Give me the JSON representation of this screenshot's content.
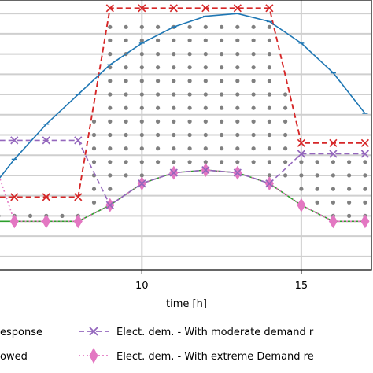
{
  "chart_data": {
    "type": "line",
    "xlabel": "time [h]",
    "ylabel": "",
    "xlim": [
      5.5,
      17.2
    ],
    "ylim": [
      0,
      1
    ],
    "x_ticks": [
      10,
      15
    ],
    "grid": true,
    "legend_placement": "bottom",
    "colors": {
      "blue": "#1f77b4",
      "red": "#d62728",
      "purple": "#9467bd",
      "green": "#2ca02c",
      "pink": "#e377c2",
      "dots": "#808080",
      "grid": "#cfcfcf"
    },
    "series": [
      {
        "key": "blue",
        "x": [
          5,
          6,
          7,
          8,
          9,
          10,
          11,
          12,
          13,
          14,
          15,
          16,
          17
        ],
        "values": [
          0.26,
          0.41,
          0.54,
          0.65,
          0.76,
          0.84,
          0.9,
          0.94,
          0.95,
          0.92,
          0.84,
          0.73,
          0.58
        ]
      },
      {
        "key": "red",
        "x": [
          5,
          6,
          7,
          8,
          9,
          10,
          11,
          12,
          13,
          14,
          15,
          16,
          17
        ],
        "values": [
          0.27,
          0.27,
          0.27,
          0.27,
          0.97,
          0.97,
          0.97,
          0.97,
          0.97,
          0.97,
          0.47,
          0.47,
          0.47
        ]
      },
      {
        "key": "purple",
        "name": "Elect. dem. - With moderate demand r",
        "x": [
          5,
          6,
          7,
          8,
          9,
          10,
          11,
          12,
          13,
          14,
          15,
          16,
          17
        ],
        "values": [
          0.48,
          0.48,
          0.48,
          0.48,
          0.24,
          0.32,
          0.36,
          0.37,
          0.36,
          0.32,
          0.43,
          0.43,
          0.43
        ]
      },
      {
        "key": "green",
        "x": [
          5,
          6,
          7,
          8,
          9,
          10,
          11,
          12,
          13,
          14,
          15,
          16,
          17
        ],
        "values": [
          0.18,
          0.18,
          0.18,
          0.18,
          0.24,
          0.32,
          0.36,
          0.37,
          0.36,
          0.32,
          0.24,
          0.18,
          0.18
        ]
      },
      {
        "key": "pink",
        "name": "Elect. dem. - With extreme Demand re",
        "x": [
          5,
          6,
          7,
          8,
          9,
          10,
          11,
          12,
          13,
          14,
          15,
          16,
          17
        ],
        "values": [
          0.53,
          0.18,
          0.18,
          0.18,
          0.24,
          0.32,
          0.36,
          0.37,
          0.36,
          0.32,
          0.24,
          0.18,
          0.18
        ]
      }
    ]
  },
  "legend": {
    "row1_left": "esponse",
    "row2_left": "owed",
    "row1_right": "Elect. dem. - With moderate demand r",
    "row2_right": "Elect. dem. - With extreme Demand re"
  }
}
